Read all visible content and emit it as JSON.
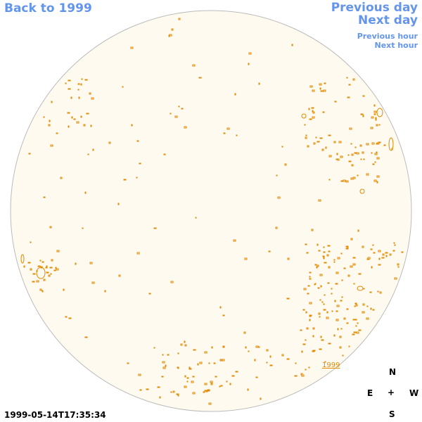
{
  "nav": {
    "back": "Back to 1999",
    "previous_day": "Previous day",
    "next_day": "Next day",
    "previous_hour": "Previous hour",
    "next_hour": "Next hour"
  },
  "disk": {
    "fill_color": "#fefaef",
    "border_color": "#bbbbbb",
    "feature_color": "#e08a00",
    "year_label": "1999"
  },
  "compass": {
    "n": "N",
    "s": "S",
    "e": "E",
    "w": "W",
    "center": "+"
  },
  "timestamp": "1999-05-14T17:35:34"
}
